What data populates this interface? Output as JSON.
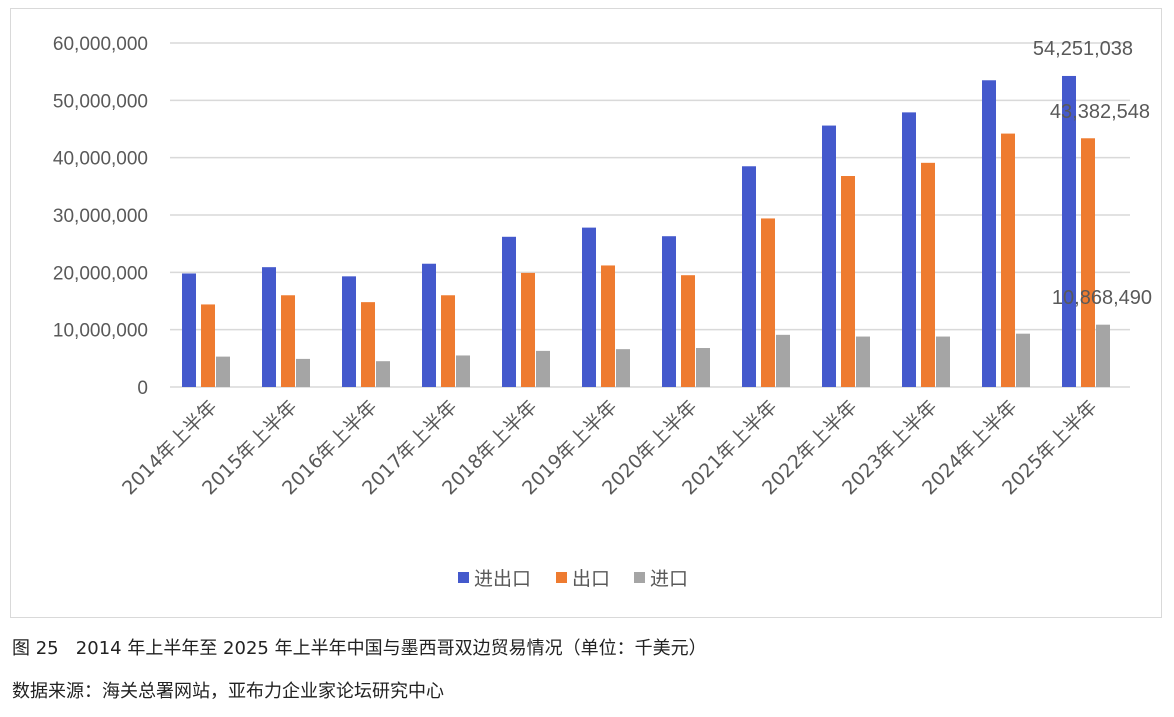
{
  "chart_data": {
    "type": "bar",
    "categories": [
      "2014年上半年",
      "2015年上半年",
      "2016年上半年",
      "2017年上半年",
      "2018年上半年",
      "2019年上半年",
      "2020年上半年",
      "2021年上半年",
      "2022年上半年",
      "2023年上半年",
      "2024年上半年",
      "2025年上半年"
    ],
    "series": [
      {
        "name": "进出口",
        "color": "#4459cc",
        "values": [
          19800000,
          20900000,
          19300000,
          21500000,
          26200000,
          27800000,
          26300000,
          38500000,
          45600000,
          47900000,
          53500000,
          54251038
        ]
      },
      {
        "name": "出口",
        "color": "#ee7b30",
        "values": [
          14400000,
          16000000,
          14800000,
          16000000,
          19900000,
          21200000,
          19500000,
          29400000,
          36800000,
          39100000,
          44200000,
          43382548
        ]
      },
      {
        "name": "进口",
        "color": "#a5a5a5",
        "values": [
          5300000,
          4900000,
          4500000,
          5500000,
          6300000,
          6600000,
          6800000,
          9100000,
          8800000,
          8800000,
          9300000,
          10868490
        ]
      }
    ],
    "data_labels": [
      "54,251,038",
      "43,382,548",
      "10,868,490"
    ],
    "yticks": [
      "0",
      "10,000,000",
      "20,000,000",
      "30,000,000",
      "40,000,000",
      "50,000,000",
      "60,000,000"
    ],
    "ylim": [
      0,
      60000000
    ],
    "grid": true,
    "legend": "bottom",
    "xlabel": "",
    "ylabel": "",
    "title": ""
  },
  "caption": "图 25   2014 年上半年至 2025 年上半年中国与墨西哥双边贸易情况（单位：千美元）",
  "source": "数据来源：海关总署网站，亚布力企业家论坛研究中心"
}
